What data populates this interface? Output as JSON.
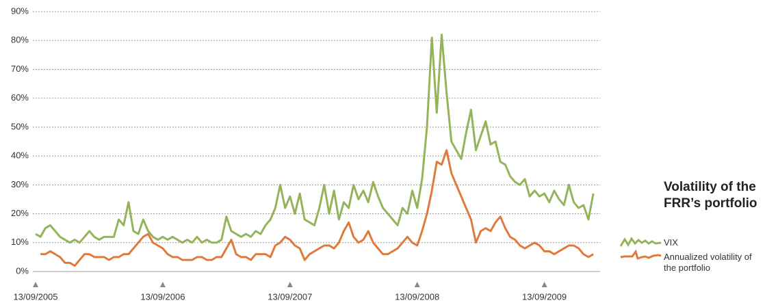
{
  "chart_data": {
    "type": "line",
    "title": "Volatility of the FRR’s portfolio",
    "categories": [
      "13/09/2005",
      null,
      null,
      null,
      null,
      null,
      null,
      null,
      null,
      null,
      null,
      null,
      null,
      null,
      null,
      null,
      null,
      null,
      null,
      null,
      null,
      null,
      null,
      null,
      null,
      null,
      "13/09/2006",
      null,
      null,
      null,
      null,
      null,
      null,
      null,
      null,
      null,
      null,
      null,
      null,
      null,
      null,
      null,
      null,
      null,
      null,
      null,
      null,
      null,
      null,
      null,
      null,
      null,
      "13/09/2007",
      null,
      null,
      null,
      null,
      null,
      null,
      null,
      null,
      null,
      null,
      null,
      null,
      null,
      null,
      null,
      null,
      null,
      null,
      null,
      null,
      null,
      null,
      null,
      null,
      null,
      "13/09/2008",
      null,
      null,
      null,
      null,
      null,
      null,
      null,
      null,
      null,
      null,
      null,
      null,
      null,
      null,
      null,
      null,
      null,
      null,
      null,
      null,
      null,
      null,
      null,
      null,
      null,
      "13/09/2009",
      null,
      null,
      null,
      null,
      null,
      null,
      null,
      null,
      null,
      null
    ],
    "series": [
      {
        "name": "VIX",
        "color": "#94b35a",
        "values": [
          13,
          12,
          15,
          16,
          14,
          12,
          11,
          10,
          11,
          10,
          12,
          14,
          12,
          11,
          12,
          12,
          12,
          18,
          16,
          24,
          14,
          13,
          18,
          14,
          12,
          11,
          12,
          11,
          12,
          11,
          10,
          11,
          10,
          12,
          10,
          11,
          10,
          10,
          11,
          19,
          14,
          13,
          12,
          13,
          12,
          14,
          13,
          16,
          18,
          22,
          30,
          22,
          26,
          20,
          27,
          18,
          17,
          16,
          22,
          30,
          20,
          28,
          18,
          24,
          22,
          30,
          25,
          28,
          24,
          31,
          26,
          22,
          20,
          18,
          16,
          22,
          20,
          28,
          22,
          32,
          50,
          81,
          55,
          82,
          62,
          45,
          42,
          39,
          48,
          56,
          42,
          47,
          52,
          44,
          45,
          38,
          37,
          33,
          31,
          30,
          32,
          26,
          28,
          26,
          27,
          24,
          28,
          25,
          23,
          30,
          24,
          22,
          23,
          18,
          27
        ]
      },
      {
        "name": "Annualized volatility of the portfolio",
        "color": "#e07a3c",
        "values": [
          null,
          6,
          6,
          7,
          6,
          5,
          3,
          3,
          2,
          4,
          6,
          6,
          5,
          5,
          5,
          4,
          5,
          5,
          6,
          6,
          8,
          10,
          12,
          13,
          10,
          9,
          8,
          6,
          5,
          5,
          4,
          4,
          4,
          5,
          5,
          4,
          4,
          5,
          5,
          8,
          11,
          6,
          5,
          5,
          4,
          6,
          6,
          6,
          5,
          9,
          10,
          12,
          11,
          9,
          8,
          4,
          6,
          7,
          8,
          9,
          9,
          8,
          10,
          14,
          17,
          12,
          10,
          11,
          14,
          10,
          8,
          6,
          6,
          7,
          8,
          10,
          12,
          10,
          9,
          14,
          20,
          28,
          38,
          37,
          42,
          34,
          30,
          26,
          22,
          18,
          10,
          14,
          15,
          14,
          17,
          19,
          15,
          12,
          11,
          9,
          8,
          9,
          10,
          9,
          7,
          7,
          6,
          7,
          8,
          9,
          9,
          8,
          6,
          5,
          6
        ]
      }
    ],
    "ylim": [
      0,
      90
    ],
    "yticks": [
      {
        "value": 0,
        "label": "0%"
      },
      {
        "value": 10,
        "label": "10%"
      },
      {
        "value": 20,
        "label": "20%"
      },
      {
        "value": 30,
        "label": "30%"
      },
      {
        "value": 40,
        "label": "40%"
      },
      {
        "value": 50,
        "label": "50%"
      },
      {
        "value": 60,
        "label": "60%"
      },
      {
        "value": 70,
        "label": "70%"
      },
      {
        "value": 80,
        "label": "80%"
      },
      {
        "value": 90,
        "label": "90%"
      }
    ],
    "grid": true
  }
}
